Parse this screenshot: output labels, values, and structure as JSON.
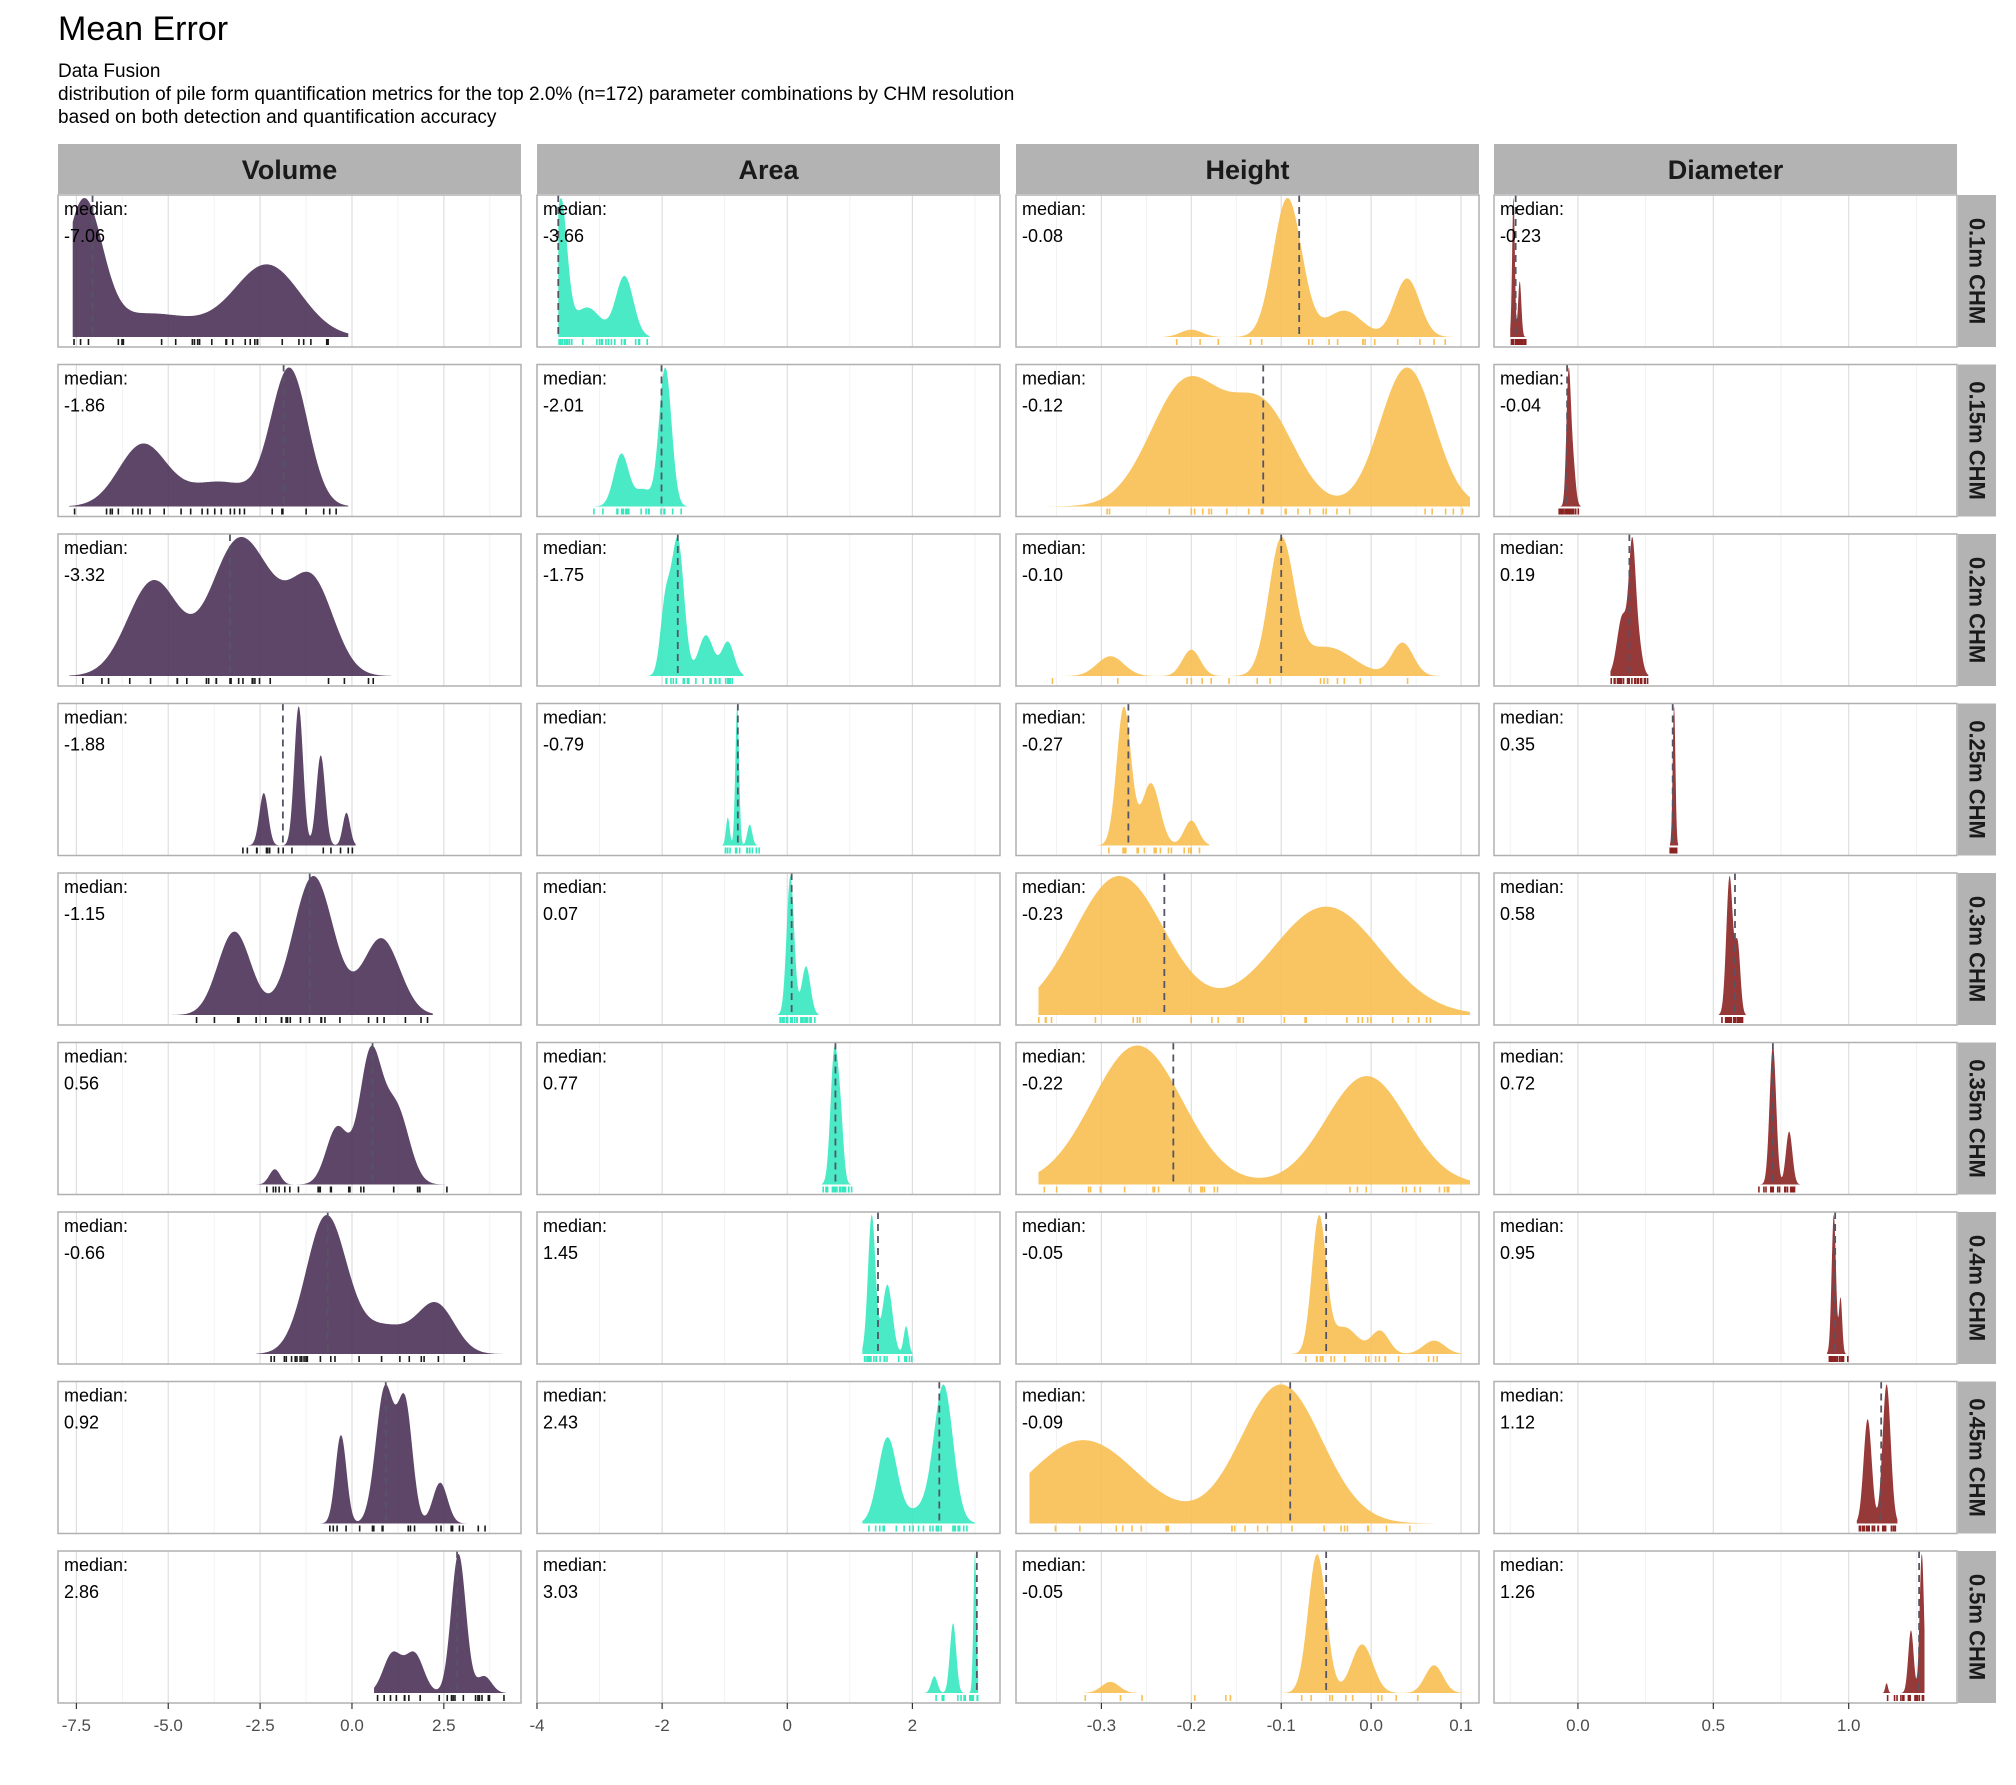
{
  "title": "Mean Error",
  "subtitle": [
    "Data Fusion",
    "distribution of pile form quantification metrics for the top 2.0% (n=172) parameter combinations by CHM resolution",
    "based on both detection and quantification accuracy"
  ],
  "median_label": "median:",
  "chart_data": {
    "type": "density",
    "columns": [
      {
        "name": "Volume",
        "color": "#4b3256",
        "xlim": [
          -8.0,
          4.6
        ],
        "ticks": [
          -7.5,
          -5.0,
          -2.5,
          0.0,
          2.5
        ],
        "tick_labels": [
          "-7.5",
          "-5.0",
          "-2.5",
          "0.0",
          "2.5"
        ]
      },
      {
        "name": "Area",
        "color": "#36e8c0",
        "xlim": [
          -4.0,
          3.4
        ],
        "ticks": [
          -4,
          -2,
          0,
          2
        ],
        "tick_labels": [
          "-4",
          "-2",
          "0",
          "2"
        ]
      },
      {
        "name": "Height",
        "color": "#f8bf52",
        "xlim": [
          -0.395,
          0.12
        ],
        "ticks": [
          -0.3,
          -0.2,
          -0.1,
          0.0,
          0.1
        ],
        "tick_labels": [
          "-0.3",
          "-0.2",
          "-0.1",
          "0.0",
          "0.1"
        ]
      },
      {
        "name": "Diameter",
        "color": "#8b2323",
        "xlim": [
          -0.31,
          1.4
        ],
        "ticks": [
          0.0,
          0.5,
          1.0
        ],
        "tick_labels": [
          "0.0",
          "0.5",
          "1.0"
        ]
      }
    ],
    "rows": [
      "0.1m CHM",
      "0.15m CHM",
      "0.2m CHM",
      "0.25m CHM",
      "0.3m CHM",
      "0.35m CHM",
      "0.4m CHM",
      "0.45m CHM",
      "0.5m CHM"
    ],
    "medians": [
      [
        "-7.06",
        "-3.66",
        "-0.08",
        "-0.23"
      ],
      [
        "-1.86",
        "-2.01",
        "-0.12",
        "-0.04"
      ],
      [
        "-3.32",
        "-1.75",
        "-0.10",
        "0.19"
      ],
      [
        "-1.88",
        "-0.79",
        "-0.27",
        "0.35"
      ],
      [
        "-1.15",
        "0.07",
        "-0.23",
        "0.58"
      ],
      [
        "0.56",
        "0.77",
        "-0.22",
        "0.72"
      ],
      [
        "-0.66",
        "1.45",
        "-0.05",
        "0.95"
      ],
      [
        "0.92",
        "2.43",
        "-0.09",
        "1.12"
      ],
      [
        "2.86",
        "3.03",
        "-0.05",
        "1.26"
      ]
    ],
    "distributions": [
      [
        {
          "range": [
            -7.6,
            -0.1
          ],
          "peaks": [
            [
              -7.3,
              0.5,
              1.0
            ],
            [
              -5.5,
              1.3,
              0.18
            ],
            [
              -2.3,
              0.9,
              0.55
            ]
          ]
        },
        {
          "range": [
            -3.66,
            -2.2
          ],
          "peaks": [
            [
              -3.62,
              0.1,
              1.0
            ],
            [
              -3.2,
              0.22,
              0.22
            ],
            [
              -2.6,
              0.14,
              0.45
            ]
          ]
        },
        {
          "range": [
            -0.23,
            0.105
          ],
          "peaks": [
            [
              -0.093,
              0.016,
              0.95
            ],
            [
              -0.03,
              0.02,
              0.18
            ],
            [
              0.04,
              0.014,
              0.4
            ],
            [
              -0.2,
              0.012,
              0.05
            ]
          ]
        },
        {
          "range": [
            -0.25,
            -0.19
          ],
          "peaks": [
            [
              -0.238,
              0.005,
              1.0
            ],
            [
              -0.215,
              0.006,
              0.4
            ]
          ]
        }
      ],
      [
        {
          "range": [
            -7.7,
            -0.1
          ],
          "peaks": [
            [
              -5.7,
              0.65,
              0.45
            ],
            [
              -3.6,
              0.9,
              0.18
            ],
            [
              -1.7,
              0.5,
              1.0
            ]
          ]
        },
        {
          "range": [
            -3.1,
            -1.6
          ],
          "peaks": [
            [
              -2.65,
              0.12,
              0.38
            ],
            [
              -1.95,
              0.1,
              1.0
            ],
            [
              -2.3,
              0.12,
              0.12
            ]
          ]
        },
        {
          "range": [
            -0.36,
            0.11
          ],
          "peaks": [
            [
              -0.205,
              0.04,
              0.85
            ],
            [
              -0.12,
              0.035,
              0.65
            ],
            [
              0.04,
              0.03,
              0.95
            ]
          ]
        },
        {
          "range": [
            -0.07,
            0.01
          ],
          "peaks": [
            [
              -0.035,
              0.008,
              1.0
            ],
            [
              -0.02,
              0.01,
              0.4
            ]
          ]
        }
      ],
      [
        {
          "range": [
            -7.7,
            1.1
          ],
          "peaks": [
            [
              -5.4,
              0.7,
              0.75
            ],
            [
              -3.2,
              0.7,
              0.95
            ],
            [
              -1.1,
              0.6,
              0.75
            ],
            [
              -2.3,
              0.6,
              0.35
            ]
          ]
        },
        {
          "range": [
            -2.3,
            -0.7
          ],
          "peaks": [
            [
              -1.75,
              0.1,
              1.0
            ],
            [
              -1.95,
              0.08,
              0.5
            ],
            [
              -1.3,
              0.12,
              0.3
            ],
            [
              -0.95,
              0.1,
              0.25
            ]
          ]
        },
        {
          "range": [
            -0.36,
            0.1
          ],
          "peaks": [
            [
              -0.29,
              0.015,
              0.15
            ],
            [
              -0.2,
              0.01,
              0.2
            ],
            [
              -0.1,
              0.014,
              1.0
            ],
            [
              -0.05,
              0.03,
              0.22
            ],
            [
              0.035,
              0.012,
              0.25
            ]
          ]
        },
        {
          "range": [
            0.12,
            0.26
          ],
          "peaks": [
            [
              0.165,
              0.02,
              0.55
            ],
            [
              0.2,
              0.012,
              1.0
            ],
            [
              0.22,
              0.015,
              0.35
            ]
          ]
        }
      ],
      [
        {
          "range": [
            -3.3,
            0.1
          ],
          "peaks": [
            [
              -2.4,
              0.12,
              0.32
            ],
            [
              -1.45,
              0.12,
              0.85
            ],
            [
              -0.85,
              0.12,
              0.55
            ],
            [
              -0.15,
              0.1,
              0.2
            ]
          ]
        },
        {
          "range": [
            -1.05,
            -0.4
          ],
          "peaks": [
            [
              -0.95,
              0.03,
              0.2
            ],
            [
              -0.8,
              0.03,
              1.0
            ],
            [
              -0.6,
              0.04,
              0.15
            ]
          ]
        },
        {
          "range": [
            -0.33,
            -0.18
          ],
          "peaks": [
            [
              -0.275,
              0.008,
              1.0
            ],
            [
              -0.245,
              0.01,
              0.45
            ],
            [
              -0.2,
              0.008,
              0.18
            ]
          ]
        },
        {
          "range": [
            0.34,
            0.37
          ],
          "peaks": [
            [
              0.355,
              0.005,
              1.0
            ]
          ]
        }
      ],
      [
        {
          "range": [
            -5.0,
            2.2
          ],
          "peaks": [
            [
              -3.2,
              0.45,
              0.6
            ],
            [
              -1.05,
              0.55,
              1.0
            ],
            [
              0.8,
              0.5,
              0.55
            ]
          ]
        },
        {
          "range": [
            -0.15,
            0.5
          ],
          "peaks": [
            [
              0.05,
              0.06,
              1.0
            ],
            [
              0.3,
              0.07,
              0.35
            ]
          ]
        },
        {
          "range": [
            -0.37,
            0.11
          ],
          "peaks": [
            [
              -0.28,
              0.05,
              1.0
            ],
            [
              -0.05,
              0.06,
              0.78
            ]
          ]
        },
        {
          "range": [
            0.52,
            0.62
          ],
          "peaks": [
            [
              0.56,
              0.012,
              1.0
            ],
            [
              0.59,
              0.01,
              0.5
            ]
          ]
        }
      ],
      [
        {
          "range": [
            -2.7,
            2.9
          ],
          "peaks": [
            [
              -2.1,
              0.15,
              0.12
            ],
            [
              -0.4,
              0.3,
              0.45
            ],
            [
              0.5,
              0.3,
              1.0
            ],
            [
              1.2,
              0.35,
              0.6
            ]
          ]
        },
        {
          "range": [
            0.55,
            1.05
          ],
          "peaks": [
            [
              0.75,
              0.06,
              1.0
            ],
            [
              0.85,
              0.05,
              0.45
            ]
          ]
        },
        {
          "range": [
            -0.37,
            0.11
          ],
          "peaks": [
            [
              -0.26,
              0.05,
              1.0
            ],
            [
              -0.005,
              0.045,
              0.78
            ]
          ]
        },
        {
          "range": [
            0.66,
            0.82
          ],
          "peaks": [
            [
              0.72,
              0.012,
              1.0
            ],
            [
              0.78,
              0.012,
              0.38
            ]
          ]
        }
      ],
      [
        {
          "range": [
            -2.6,
            4.1
          ],
          "peaks": [
            [
              -0.7,
              0.55,
              1.0
            ],
            [
              0.9,
              0.7,
              0.2
            ],
            [
              2.3,
              0.5,
              0.35
            ]
          ]
        },
        {
          "range": [
            1.2,
            2.0
          ],
          "peaks": [
            [
              1.35,
              0.06,
              1.0
            ],
            [
              1.6,
              0.08,
              0.5
            ],
            [
              1.9,
              0.04,
              0.2
            ]
          ]
        },
        {
          "range": [
            -0.1,
            0.1
          ],
          "peaks": [
            [
              -0.058,
              0.008,
              1.0
            ],
            [
              -0.03,
              0.015,
              0.2
            ],
            [
              0.01,
              0.01,
              0.17
            ],
            [
              0.07,
              0.012,
              0.1
            ]
          ]
        },
        {
          "range": [
            0.92,
            1.0
          ],
          "peaks": [
            [
              0.945,
              0.008,
              1.0
            ],
            [
              0.97,
              0.006,
              0.4
            ]
          ]
        }
      ],
      [
        {
          "range": [
            -0.9,
            3.7
          ],
          "peaks": [
            [
              -0.3,
              0.15,
              0.65
            ],
            [
              0.9,
              0.25,
              1.0
            ],
            [
              1.45,
              0.2,
              0.85
            ],
            [
              2.4,
              0.2,
              0.3
            ]
          ]
        },
        {
          "range": [
            1.2,
            3.0
          ],
          "peaks": [
            [
              1.6,
              0.15,
              0.65
            ],
            [
              2.5,
              0.15,
              1.0
            ],
            [
              2.2,
              0.3,
              0.12
            ]
          ]
        },
        {
          "range": [
            -0.38,
            0.07
          ],
          "peaks": [
            [
              -0.32,
              0.06,
              0.6
            ],
            [
              -0.1,
              0.045,
              1.0
            ]
          ]
        },
        {
          "range": [
            1.03,
            1.18
          ],
          "peaks": [
            [
              1.07,
              0.015,
              0.75
            ],
            [
              1.14,
              0.015,
              1.0
            ]
          ]
        }
      ],
      [
        {
          "range": [
            0.6,
            4.2
          ],
          "peaks": [
            [
              1.1,
              0.25,
              0.28
            ],
            [
              1.7,
              0.25,
              0.28
            ],
            [
              2.9,
              0.2,
              1.0
            ],
            [
              3.6,
              0.2,
              0.12
            ]
          ]
        },
        {
          "range": [
            2.2,
            3.05
          ],
          "peaks": [
            [
              2.35,
              0.05,
              0.12
            ],
            [
              2.65,
              0.05,
              0.5
            ],
            [
              3.0,
              0.025,
              1.0
            ]
          ]
        },
        {
          "range": [
            -0.32,
            0.11
          ],
          "peaks": [
            [
              -0.29,
              0.01,
              0.08
            ],
            [
              -0.06,
              0.01,
              1.0
            ],
            [
              -0.01,
              0.012,
              0.35
            ],
            [
              0.07,
              0.01,
              0.2
            ]
          ]
        },
        {
          "range": [
            1.12,
            1.28
          ],
          "peaks": [
            [
              1.23,
              0.01,
              0.45
            ],
            [
              1.27,
              0.008,
              1.0
            ],
            [
              1.14,
              0.005,
              0.07
            ]
          ]
        }
      ]
    ]
  }
}
